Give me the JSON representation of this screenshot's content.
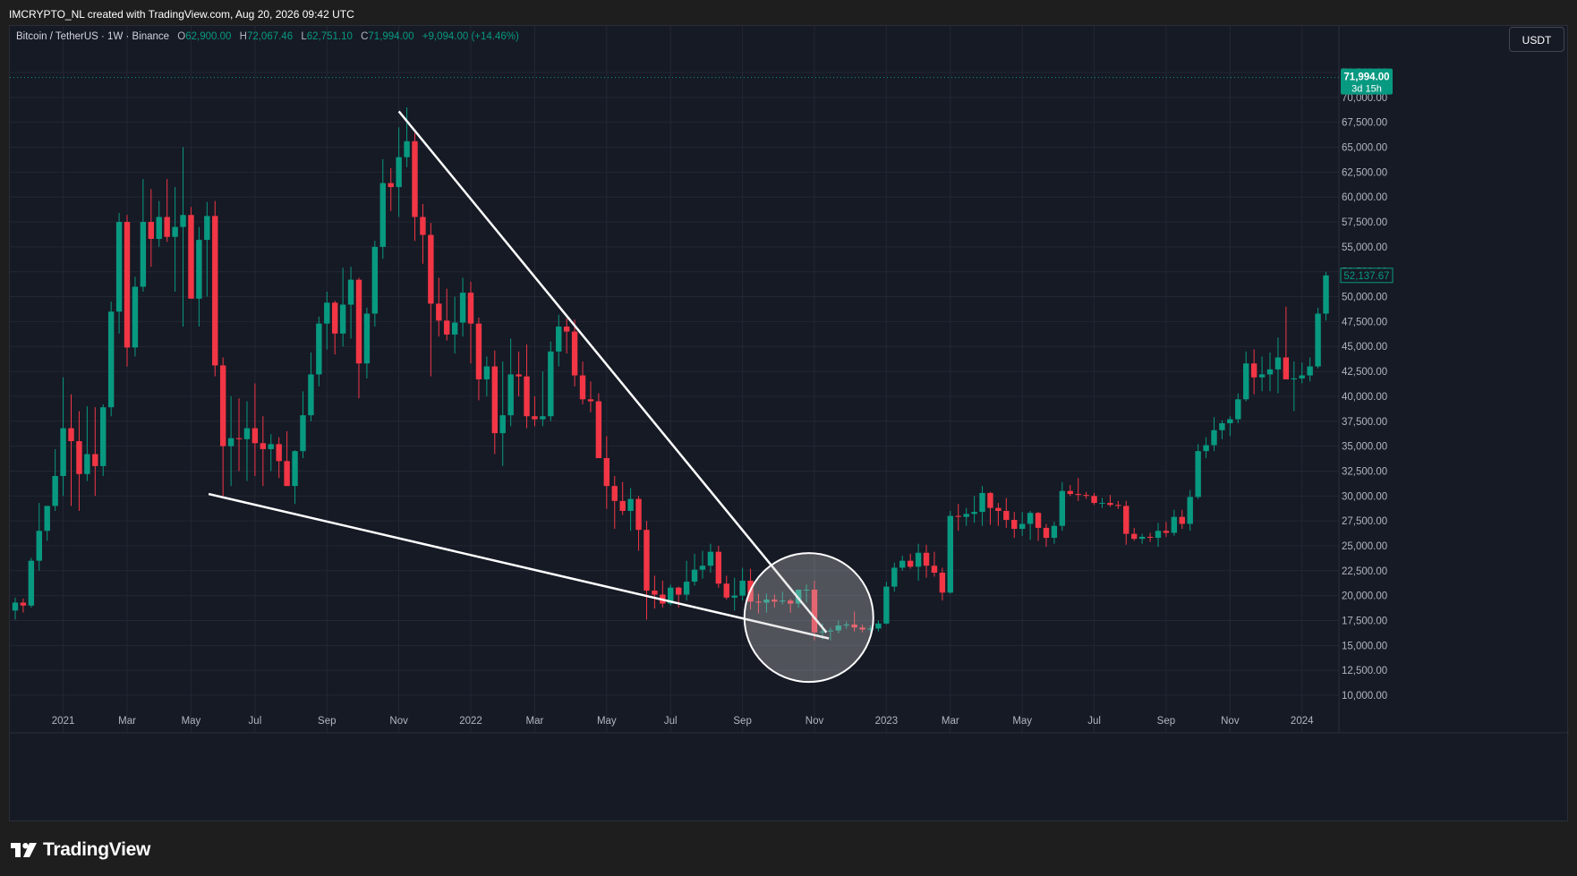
{
  "header": {
    "credit": "IMCRYPTO_NL created with TradingView.com, Aug 20, 2026 09:42 UTC"
  },
  "legend": {
    "symbol": "Bitcoin / TetherUS · 1W · Binance",
    "o_label": "O",
    "o_value": "62,900.00",
    "h_label": "H",
    "h_value": "72,067.46",
    "l_label": "L",
    "l_value": "62,751.10",
    "c_label": "C",
    "c_value": "71,994.00",
    "change": "+9,094.00 (+14.46%)"
  },
  "toolbar": {
    "currency": "USDT"
  },
  "brand": {
    "name": "TradingView"
  },
  "colors": {
    "up": "#089981",
    "down": "#f23645",
    "background": "#161a25",
    "grid": "#232734",
    "axis_text": "#b2b5be",
    "drawing": "#ffffff"
  },
  "chart_data": {
    "type": "candlestick",
    "symbol": "BTCUSDT",
    "interval": "1W",
    "ylim": [
      8000,
      75000
    ],
    "y_ticks": [
      "10,000.00",
      "12,500.00",
      "15,000.00",
      "17,500.00",
      "20,000.00",
      "22,500.00",
      "25,000.00",
      "27,500.00",
      "30,000.00",
      "32,500.00",
      "35,000.00",
      "37,500.00",
      "40,000.00",
      "42,500.00",
      "45,000.00",
      "47,500.00",
      "50,000.00",
      "52,500.00",
      "55,000.00",
      "57,500.00",
      "60,000.00",
      "62,500.00",
      "65,000.00",
      "67,500.00",
      "70,000.00",
      "72,500.00"
    ],
    "x_ticks": [
      {
        "label": "2021",
        "week": 6
      },
      {
        "label": "Mar",
        "week": 14
      },
      {
        "label": "May",
        "week": 22
      },
      {
        "label": "Jul",
        "week": 30
      },
      {
        "label": "Sep",
        "week": 39
      },
      {
        "label": "Nov",
        "week": 48
      },
      {
        "label": "2022",
        "week": 57
      },
      {
        "label": "Mar",
        "week": 65
      },
      {
        "label": "May",
        "week": 74
      },
      {
        "label": "Jul",
        "week": 82
      },
      {
        "label": "Sep",
        "week": 91
      },
      {
        "label": "Nov",
        "week": 100
      },
      {
        "label": "2023",
        "week": 109
      },
      {
        "label": "Mar",
        "week": 117
      },
      {
        "label": "May",
        "week": 126
      },
      {
        "label": "Jul",
        "week": 135
      },
      {
        "label": "Sep",
        "week": 144
      },
      {
        "label": "Nov",
        "week": 152
      },
      {
        "label": "2024",
        "week": 161
      }
    ],
    "last_price": {
      "value": 71994,
      "label": "71,994.00",
      "countdown": "3d 15h"
    },
    "marked_price": {
      "value": 52137.67,
      "label": "52,137.67"
    },
    "candles": [
      [
        18500,
        19800,
        17600,
        19300
      ],
      [
        19300,
        19700,
        18300,
        19000
      ],
      [
        19000,
        23800,
        18800,
        23500
      ],
      [
        23500,
        29300,
        22500,
        26500
      ],
      [
        26500,
        29000,
        25500,
        29000
      ],
      [
        29000,
        34700,
        28500,
        32000
      ],
      [
        32000,
        41900,
        30000,
        36800
      ],
      [
        36800,
        40200,
        29000,
        35500
      ],
      [
        35500,
        38500,
        28500,
        32200
      ],
      [
        32200,
        39000,
        31500,
        34200
      ],
      [
        34200,
        38900,
        30000,
        33000
      ],
      [
        33000,
        39200,
        32000,
        38900
      ],
      [
        38900,
        49500,
        38000,
        48500
      ],
      [
        48500,
        58400,
        46300,
        57500
      ],
      [
        57500,
        58200,
        43000,
        44900
      ],
      [
        44900,
        52000,
        44000,
        51000
      ],
      [
        51000,
        61800,
        50500,
        57500
      ],
      [
        57500,
        60800,
        53000,
        55800
      ],
      [
        55800,
        59600,
        55000,
        58000
      ],
      [
        58000,
        61800,
        55500,
        56000
      ],
      [
        56000,
        61000,
        50500,
        57000
      ],
      [
        57000,
        65000,
        47000,
        58200
      ],
      [
        58200,
        59000,
        50000,
        49800
      ],
      [
        49800,
        57000,
        47000,
        55700
      ],
      [
        55700,
        59500,
        50000,
        58100
      ],
      [
        58100,
        59600,
        42000,
        43100
      ],
      [
        43100,
        43900,
        30000,
        35000
      ],
      [
        35000,
        40000,
        31000,
        35800
      ],
      [
        35800,
        39800,
        32500,
        35700
      ],
      [
        35700,
        39500,
        31500,
        36800
      ],
      [
        36800,
        41300,
        32000,
        35300
      ],
      [
        35300,
        38000,
        31000,
        34700
      ],
      [
        34700,
        36200,
        32500,
        35200
      ],
      [
        35200,
        35900,
        31800,
        33500
      ],
      [
        33500,
        36500,
        31000,
        31000
      ],
      [
        31000,
        34600,
        29200,
        34500
      ],
      [
        34500,
        40500,
        33800,
        38100
      ],
      [
        38100,
        44400,
        37500,
        42200
      ],
      [
        42200,
        48000,
        41000,
        47300
      ],
      [
        47300,
        50500,
        44700,
        49400
      ],
      [
        49400,
        49600,
        44200,
        46300
      ],
      [
        46300,
        52900,
        45000,
        49200
      ],
      [
        49200,
        53000,
        45800,
        51700
      ],
      [
        51700,
        51900,
        39800,
        43300
      ],
      [
        43300,
        48900,
        41800,
        48300
      ],
      [
        48300,
        55600,
        47000,
        55000
      ],
      [
        55000,
        63800,
        53800,
        61400
      ],
      [
        61400,
        62900,
        58600,
        61000
      ],
      [
        61000,
        67000,
        58000,
        64000
      ],
      [
        64000,
        69000,
        63000,
        65600
      ],
      [
        65600,
        66400,
        55600,
        58000
      ],
      [
        58000,
        59300,
        53300,
        56200
      ],
      [
        56200,
        57400,
        42000,
        49300
      ],
      [
        49300,
        51900,
        46000,
        47600
      ],
      [
        47600,
        50800,
        45600,
        46200
      ],
      [
        46200,
        50000,
        44300,
        47400
      ],
      [
        47400,
        51900,
        46000,
        50400
      ],
      [
        50400,
        51500,
        43300,
        47300
      ],
      [
        47300,
        47900,
        39600,
        41700
      ],
      [
        41700,
        44000,
        40000,
        43000
      ],
      [
        43000,
        44600,
        34200,
        36300
      ],
      [
        36300,
        43500,
        33000,
        38100
      ],
      [
        38100,
        45800,
        37000,
        42200
      ],
      [
        42200,
        44500,
        40000,
        42000
      ],
      [
        42000,
        45200,
        36800,
        38000
      ],
      [
        38000,
        40000,
        37000,
        37700
      ],
      [
        37700,
        42500,
        37000,
        38000
      ],
      [
        38000,
        45500,
        37500,
        44500
      ],
      [
        44500,
        48200,
        43000,
        47000
      ],
      [
        47000,
        47800,
        44300,
        46500
      ],
      [
        46500,
        47700,
        41000,
        42100
      ],
      [
        42100,
        43500,
        39200,
        39700
      ],
      [
        39700,
        41500,
        38400,
        39500
      ],
      [
        39500,
        40300,
        34000,
        33800
      ],
      [
        33800,
        36000,
        28700,
        31000
      ],
      [
        31000,
        32000,
        26700,
        29500
      ],
      [
        29500,
        31400,
        28100,
        28500
      ],
      [
        28500,
        30800,
        26500,
        29700
      ],
      [
        29700,
        30000,
        24500,
        26600
      ],
      [
        26600,
        27500,
        17600,
        20500
      ],
      [
        20500,
        22000,
        18700,
        20100
      ],
      [
        20100,
        21500,
        18800,
        19200
      ],
      [
        19200,
        21100,
        19000,
        20800
      ],
      [
        20800,
        20900,
        18800,
        20100
      ],
      [
        20100,
        23500,
        19500,
        21400
      ],
      [
        21400,
        24200,
        21000,
        22600
      ],
      [
        22600,
        24500,
        21700,
        23000
      ],
      [
        23000,
        25200,
        22300,
        24400
      ],
      [
        24400,
        25000,
        20800,
        21200
      ],
      [
        21200,
        22000,
        19600,
        19800
      ],
      [
        19800,
        21800,
        18500,
        20000
      ],
      [
        20000,
        22800,
        19500,
        21500
      ],
      [
        21500,
        22700,
        18600,
        19400
      ],
      [
        19400,
        20200,
        18200,
        19300
      ],
      [
        19300,
        20200,
        18300,
        19600
      ],
      [
        19600,
        20100,
        18800,
        19400
      ],
      [
        19400,
        20400,
        19100,
        19500
      ],
      [
        19500,
        19700,
        18300,
        19200
      ],
      [
        19200,
        20500,
        18800,
        20600
      ],
      [
        20600,
        21100,
        19300,
        20600
      ],
      [
        20600,
        21500,
        15500,
        16300
      ],
      [
        16300,
        17200,
        15600,
        16400
      ],
      [
        16400,
        16800,
        15500,
        16500
      ],
      [
        16500,
        17500,
        16200,
        17000
      ],
      [
        17000,
        17400,
        16700,
        17100
      ],
      [
        17100,
        18400,
        16400,
        16800
      ],
      [
        16800,
        17100,
        16300,
        16600
      ],
      [
        16600,
        17000,
        16300,
        16700
      ],
      [
        16700,
        17500,
        16400,
        17200
      ],
      [
        17200,
        21400,
        17100,
        20900
      ],
      [
        20900,
        23300,
        20400,
        22800
      ],
      [
        22800,
        24000,
        22500,
        23500
      ],
      [
        23500,
        24200,
        22700,
        22900
      ],
      [
        22900,
        25200,
        21500,
        24300
      ],
      [
        24300,
        25100,
        21800,
        23000
      ],
      [
        23000,
        24400,
        21900,
        22300
      ],
      [
        22300,
        22800,
        19500,
        20300
      ],
      [
        20300,
        28500,
        20200,
        28000
      ],
      [
        28000,
        29200,
        26500,
        27900
      ],
      [
        27900,
        28800,
        27000,
        28200
      ],
      [
        28200,
        30000,
        27300,
        28400
      ],
      [
        28400,
        31000,
        27000,
        30300
      ],
      [
        30300,
        30400,
        27100,
        28800
      ],
      [
        28800,
        29300,
        27000,
        28500
      ],
      [
        28500,
        29800,
        26800,
        27600
      ],
      [
        27600,
        28400,
        25800,
        26700
      ],
      [
        26700,
        28400,
        26000,
        27200
      ],
      [
        27200,
        28500,
        25600,
        28300
      ],
      [
        28300,
        28400,
        25500,
        26800
      ],
      [
        26800,
        27200,
        24900,
        25800
      ],
      [
        25800,
        27400,
        25200,
        27000
      ],
      [
        27000,
        31400,
        26500,
        30500
      ],
      [
        30500,
        31100,
        30000,
        30200
      ],
      [
        30200,
        31800,
        29500,
        30100
      ],
      [
        30100,
        30400,
        29700,
        30000
      ],
      [
        30000,
        30300,
        29100,
        29300
      ],
      [
        29300,
        29800,
        28800,
        29300
      ],
      [
        29300,
        30100,
        28900,
        29100
      ],
      [
        29100,
        29500,
        28700,
        29000
      ],
      [
        29000,
        29500,
        25100,
        26200
      ],
      [
        26200,
        26800,
        25500,
        25700
      ],
      [
        25700,
        26200,
        25200,
        25900
      ],
      [
        25900,
        26300,
        25400,
        25800
      ],
      [
        25800,
        27300,
        24900,
        26500
      ],
      [
        26500,
        27400,
        25900,
        26300
      ],
      [
        26300,
        28600,
        26000,
        27900
      ],
      [
        27900,
        28600,
        26700,
        27200
      ],
      [
        27200,
        30600,
        26500,
        29900
      ],
      [
        29900,
        35200,
        29700,
        34500
      ],
      [
        34500,
        35900,
        33800,
        35100
      ],
      [
        35100,
        37900,
        34500,
        36600
      ],
      [
        36600,
        37600,
        35700,
        37300
      ],
      [
        37300,
        38000,
        36000,
        37700
      ],
      [
        37700,
        40300,
        37300,
        39700
      ],
      [
        39700,
        44500,
        39500,
        43300
      ],
      [
        43300,
        44700,
        40200,
        41900
      ],
      [
        41900,
        44000,
        40500,
        42200
      ],
      [
        42200,
        44400,
        40500,
        42700
      ],
      [
        42700,
        45900,
        40300,
        43900
      ],
      [
        43900,
        49000,
        41800,
        41700
      ],
      [
        41700,
        43500,
        38500,
        41800
      ],
      [
        41800,
        43400,
        41300,
        42100
      ],
      [
        42100,
        43900,
        41500,
        43000
      ],
      [
        43000,
        48900,
        42800,
        48300
      ],
      [
        48300,
        52500,
        47600,
        52137.67
      ]
    ]
  }
}
